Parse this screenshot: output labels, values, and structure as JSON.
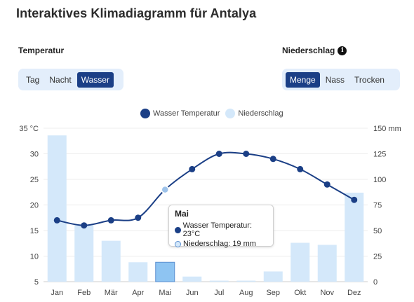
{
  "page": {
    "title": "Interaktives Klimadiagramm für Antalya"
  },
  "temperature_section": {
    "label": "Temperatur",
    "buttons": [
      "Tag",
      "Nacht",
      "Wasser"
    ],
    "active": "Wasser"
  },
  "precipitation_section": {
    "label": "Niederschlag",
    "info_icon": "info-icon",
    "buttons": [
      "Menge",
      "Nass",
      "Trocken"
    ],
    "active": "Menge"
  },
  "legend": {
    "temp": "Wasser Temperatur",
    "rain": "Niederschlag"
  },
  "colors": {
    "temp": "#1b3f86",
    "rain": "#d4e8fa",
    "rain_highlight": "#8ec4f2",
    "accent": "#1b3f86"
  },
  "tooltip": {
    "title": "Mai",
    "temp_text": "Wasser Temperatur: 23°C",
    "rain_text": "Niederschlag: 19 mm"
  },
  "chart_data": {
    "type": "bar+line",
    "categories": [
      "Jan",
      "Feb",
      "Mär",
      "Apr",
      "Mai",
      "Jun",
      "Jul",
      "Aug",
      "Sep",
      "Okt",
      "Nov",
      "Dez"
    ],
    "series": [
      {
        "name": "Wasser Temperatur",
        "type": "line",
        "axis": "left",
        "unit": "°C",
        "values": [
          17,
          16,
          17,
          17.5,
          23,
          27,
          30,
          30,
          29,
          27,
          24,
          21
        ]
      },
      {
        "name": "Niederschlag",
        "type": "bar",
        "axis": "right",
        "unit": "mm",
        "values": [
          143,
          56,
          40,
          19,
          19,
          5,
          1,
          1,
          10,
          38,
          36,
          87
        ]
      }
    ],
    "y_left": {
      "min": 5,
      "max": 35,
      "ticks": [
        "35 °C",
        "30",
        "25",
        "20",
        "15",
        "10",
        "5"
      ]
    },
    "y_right": {
      "min": 0,
      "max": 150,
      "ticks": [
        "150 mm",
        "125",
        "100",
        "75",
        "50",
        "25",
        "0"
      ]
    },
    "highlight_index": 4,
    "grid": true,
    "legend_position": "top"
  }
}
